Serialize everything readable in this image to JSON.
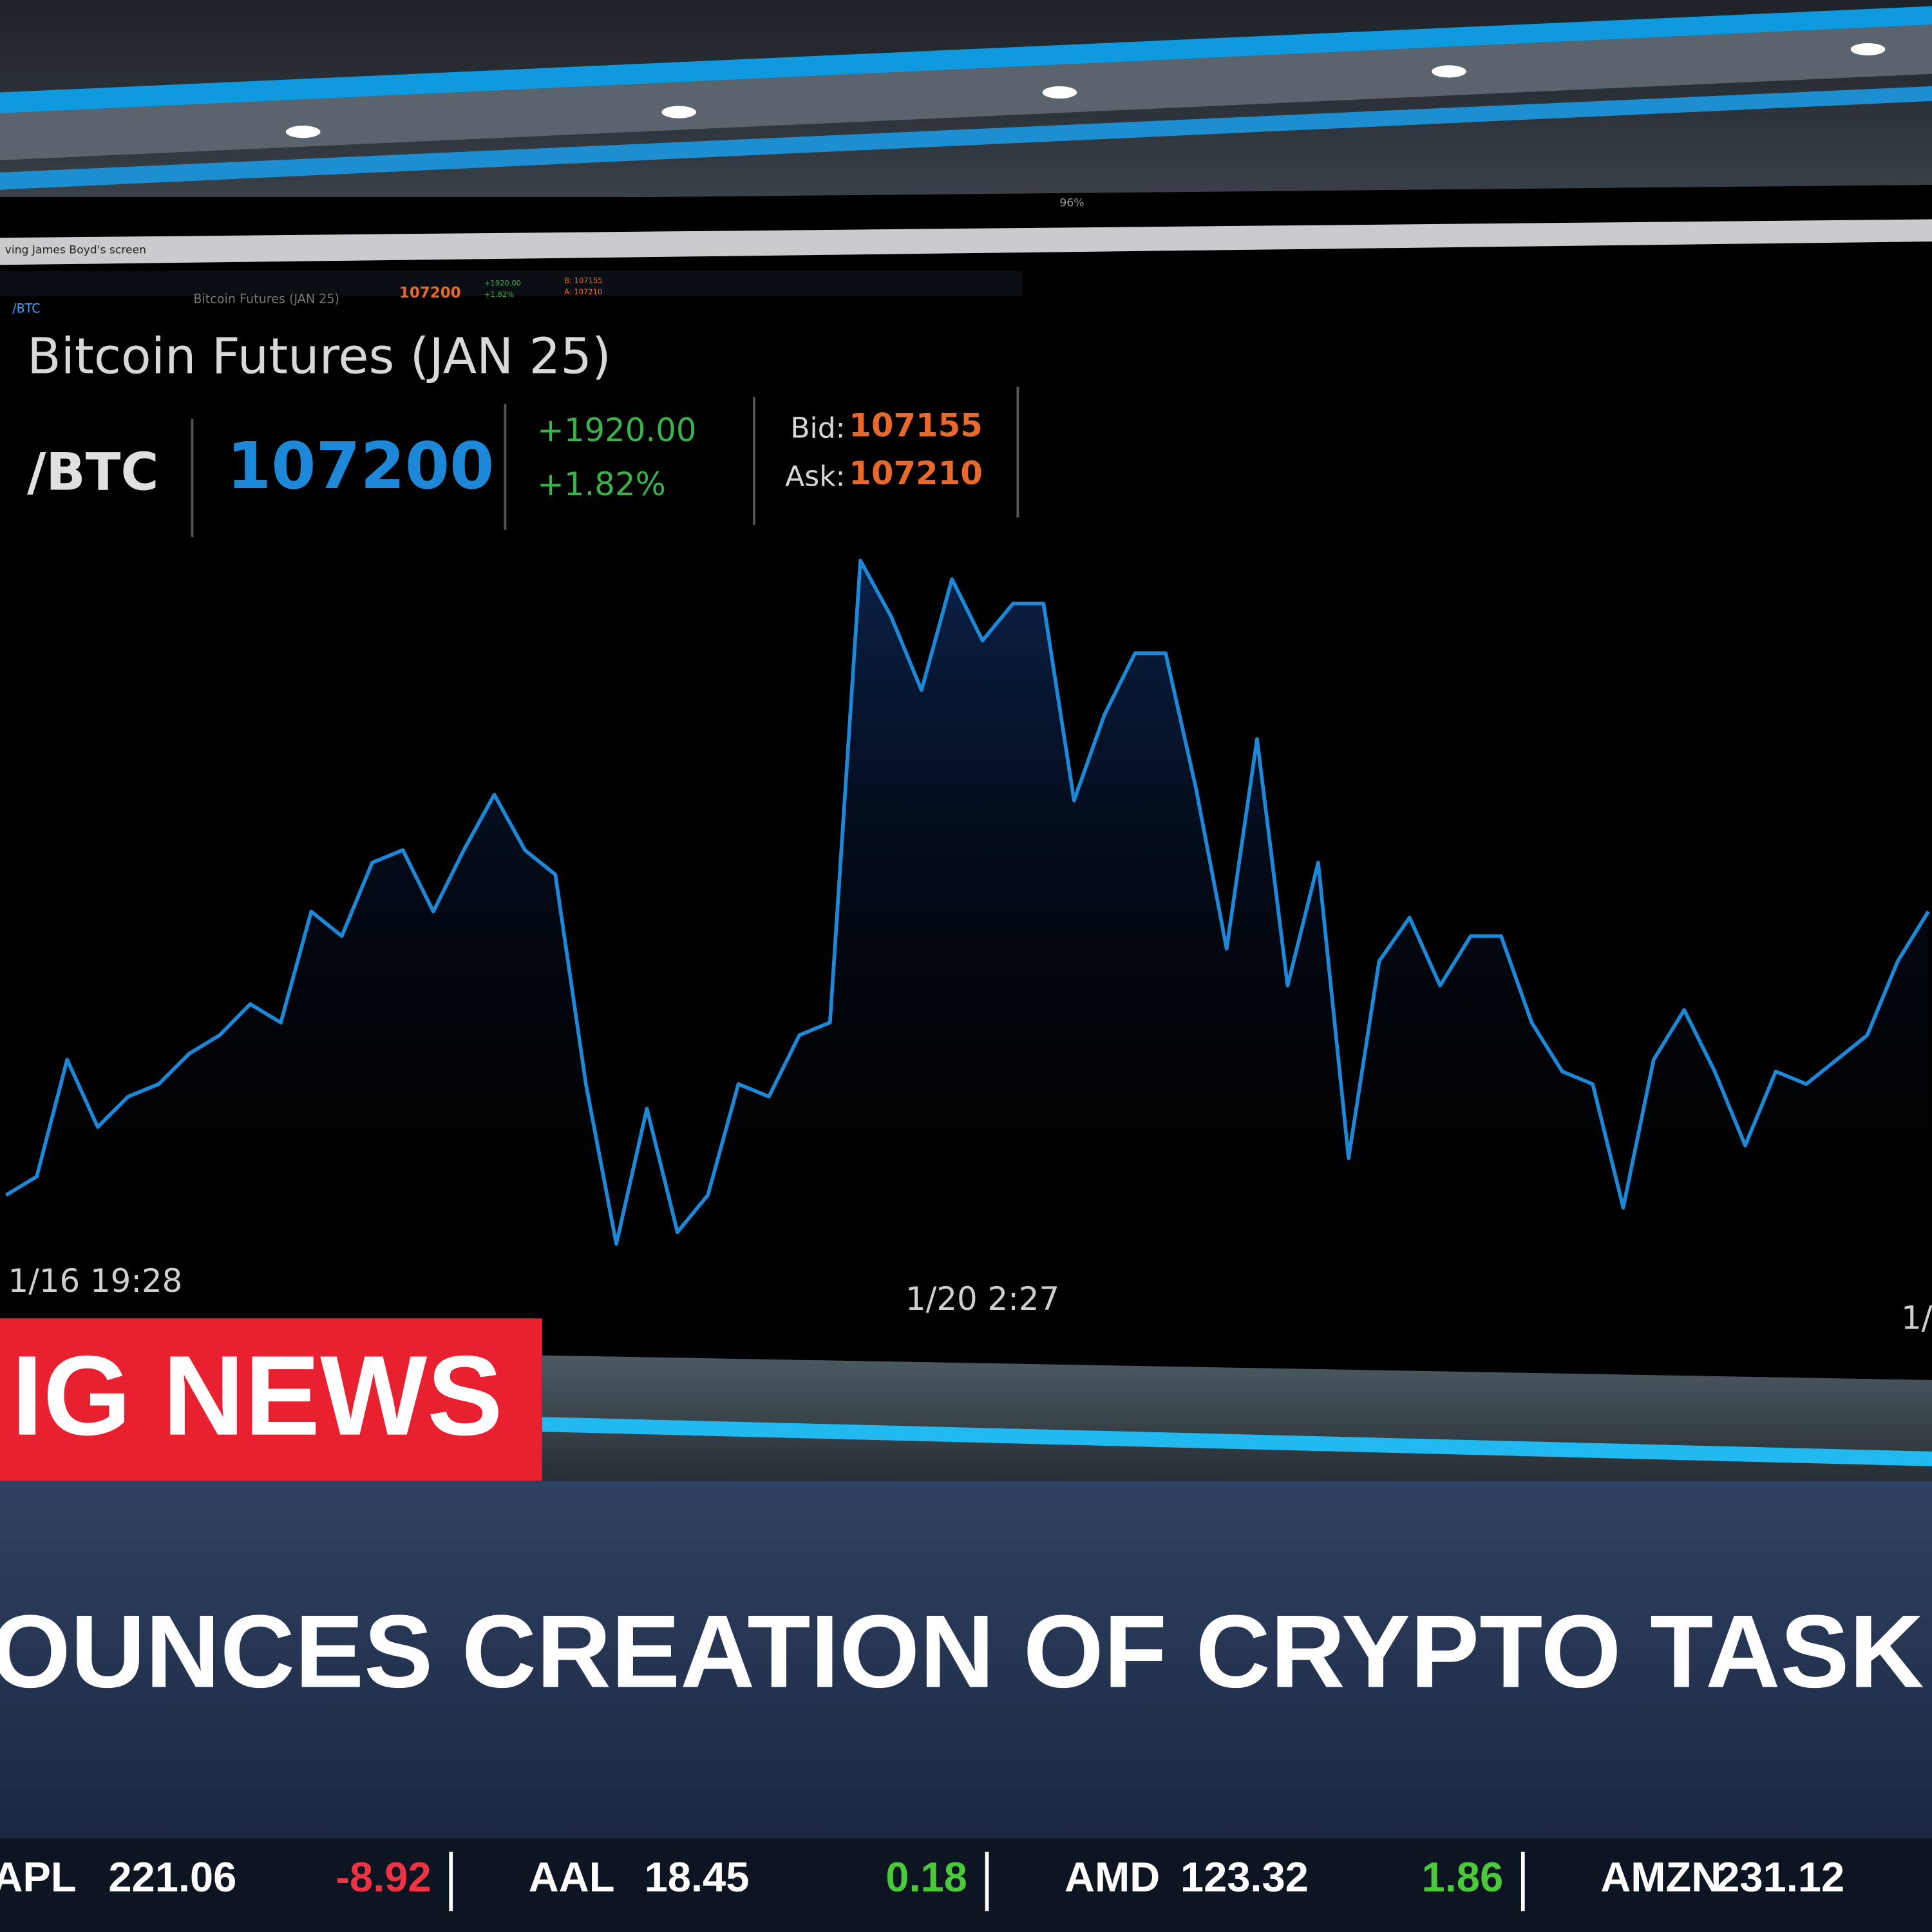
{
  "header": {
    "window_title": "ving James Boyd's screen",
    "zoom": "96%",
    "toolbar": {
      "symbol": "/BTC",
      "name": "Bitcoin Futures (JAN 25)",
      "last": "107200",
      "change": "+1920.00",
      "change_pct": "+1.82%",
      "bid": "B: 107155",
      "ask": "A: 107210"
    }
  },
  "quote": {
    "title": "Bitcoin Futures (JAN 25)",
    "symbol": "/BTC",
    "last": 107200,
    "change": "+1920.00",
    "change_pct": "+1.82%",
    "bid_label": "Bid:",
    "bid": 107155,
    "ask_label": "Ask:",
    "ask": 107210
  },
  "chart_data": {
    "type": "area",
    "color": "#1e88d8",
    "categories": [
      null,
      null,
      null,
      "1/16 19:28",
      null,
      null,
      null,
      null,
      null,
      null,
      null,
      null,
      null,
      null,
      null,
      null,
      null,
      null,
      null,
      null,
      null,
      null,
      null,
      null,
      null,
      null,
      null,
      null,
      null,
      null,
      null,
      null,
      "1/20 2:27",
      null,
      null,
      null,
      null,
      null,
      null,
      null,
      null,
      null,
      null,
      null,
      null,
      null,
      null,
      null,
      null,
      null,
      null,
      null,
      null,
      null,
      null,
      null,
      null,
      null,
      null,
      null,
      null,
      null,
      null,
      "1/"
    ],
    "values": [
      99120,
      99400,
      101170,
      100150,
      100610,
      100800,
      101260,
      101540,
      102010,
      101730,
      103410,
      103040,
      104150,
      104340,
      103410,
      104340,
      105180,
      104340,
      103970,
      100800,
      98380,
      100430,
      98560,
      99120,
      100800,
      100610,
      101540,
      101730,
      108720,
      107880,
      106760,
      108440,
      107510,
      108070,
      108070,
      105090,
      106390,
      107320,
      107320,
      105270,
      102850,
      106020,
      102290,
      104150,
      99680,
      102660,
      103320,
      102290,
      103040,
      103040,
      101730,
      100990,
      100800,
      98930,
      101170,
      101920,
      100990,
      99870,
      100990,
      100800,
      101170,
      101540,
      102660,
      103410
    ],
    "ylim": [
      98000,
      109000
    ]
  },
  "banner": {
    "label": "IG NEWS",
    "headline": "OUNCES CREATION OF CRYPTO TASK FORC"
  },
  "ticker": [
    {
      "symbol": "APL",
      "price": 221.06,
      "change": -8.92
    },
    {
      "symbol": "AAL",
      "price": 18.45,
      "change": 0.18
    },
    {
      "symbol": "AMD",
      "price": 123.32,
      "change": 1.86
    },
    {
      "symbol": "AMZN",
      "price": 231.12
    }
  ]
}
